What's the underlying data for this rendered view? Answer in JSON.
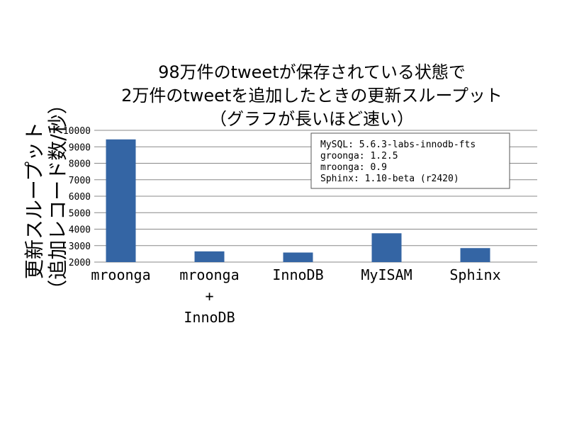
{
  "chart_data": {
    "type": "bar",
    "title_lines": [
      "98万件のtweetが保存されている状態で",
      "2万件のtweetを追加したときの更新スループット",
      "（グラフが長いほど速い）"
    ],
    "ylabel_lines": [
      "更新スループット",
      "（追加レコード数/秒）"
    ],
    "xlabel": "",
    "categories": [
      [
        "mroonga"
      ],
      [
        "mroonga",
        "+",
        "InnoDB"
      ],
      [
        "InnoDB"
      ],
      [
        "MyISAM"
      ],
      [
        "Sphinx"
      ]
    ],
    "values": [
      9450,
      2650,
      2580,
      3750,
      2850
    ],
    "ylim": [
      2000,
      10000
    ],
    "yticks": [
      2000,
      3000,
      4000,
      5000,
      6000,
      7000,
      8000,
      9000,
      10000
    ],
    "grid": true,
    "bar_color": "#3465a4",
    "legend_lines": [
      "MySQL: 5.6.3-labs-innodb-fts",
      "groonga: 1.2.5",
      "mroonga: 0.9",
      "Sphinx: 1.10-beta (r2420)"
    ],
    "legend_position": "top-right"
  }
}
